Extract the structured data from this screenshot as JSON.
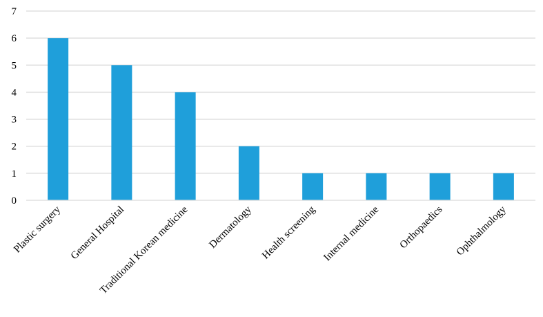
{
  "chart_data": {
    "type": "bar",
    "title": "",
    "xlabel": "",
    "ylabel": "",
    "categories": [
      "Plastic surgery",
      "General Hospital",
      "Traditional Korean medicine",
      "Dermatology",
      "Health screening",
      "Internal medicine",
      "Orthopaedics",
      "Ophthalmology"
    ],
    "values": [
      6,
      5,
      4,
      2,
      1,
      1,
      1,
      1
    ],
    "ylim": [
      0,
      7
    ],
    "yticks": [
      0,
      1,
      2,
      3,
      4,
      5,
      6,
      7
    ],
    "grid": true,
    "legend": "none",
    "bar_color": "#1f9fda",
    "grid_color": "#d9d9d9",
    "axis_color": "#d9d9d9"
  }
}
